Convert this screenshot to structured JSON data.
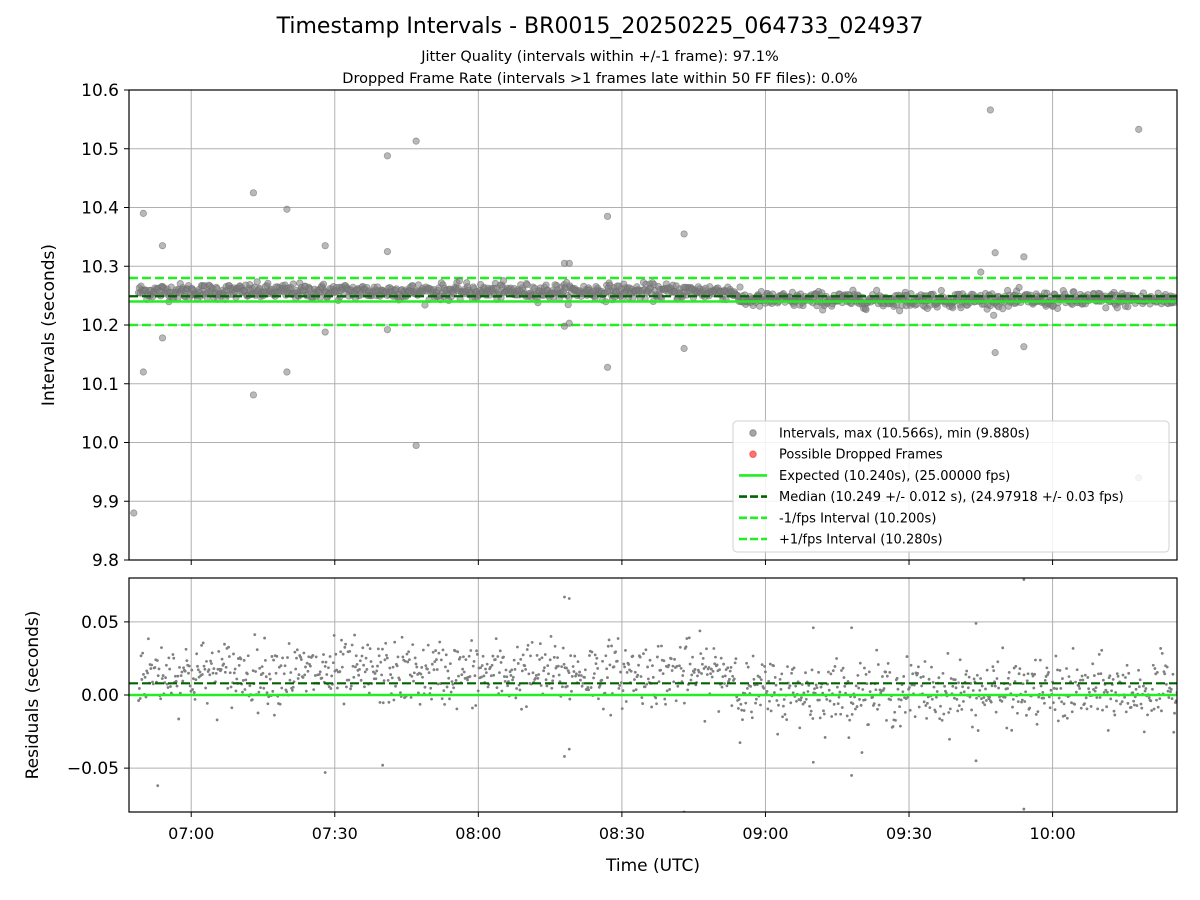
{
  "figure": {
    "title": "Timestamp Intervals - BR0015_20250225_064733_024937",
    "subtitle_1": "Jitter Quality (intervals within +/-1 frame): 97.1%",
    "subtitle_2": "Dropped Frame Rate (intervals >1 frames late within 50 FF files): 0.0%"
  },
  "colors": {
    "points": "#808080",
    "dropped": "#ff3b3b",
    "expected": "#22ee22",
    "median": "#006400",
    "fps_band": "#22ee22",
    "grid": "#b0b0b0"
  },
  "chart_data": [
    {
      "type": "scatter",
      "panel": "top",
      "title": "",
      "xlabel": "",
      "ylabel": "Intervals (seconds)",
      "xlim": [
        "06:47",
        "10:26"
      ],
      "ylim": [
        9.8,
        10.6
      ],
      "y_ticks": [
        "9.8",
        "9.9",
        "10.0",
        "10.1",
        "10.2",
        "10.3",
        "10.4",
        "10.5",
        "10.6"
      ],
      "x_ticks": [
        "07:00",
        "07:30",
        "08:00",
        "08:30",
        "09:00",
        "09:30",
        "10:00"
      ],
      "grid": true,
      "legend_position": "lower-right",
      "legend": [
        {
          "label": "Intervals, max (10.566s), min (9.880s)",
          "kind": "dot",
          "color_key": "points"
        },
        {
          "label": "Possible Dropped Frames",
          "kind": "dot",
          "color_key": "dropped"
        },
        {
          "label": "Expected (10.240s), (25.00000 fps)",
          "kind": "solid",
          "color_key": "expected"
        },
        {
          "label": "Median (10.249 +/- 0.012 s), (24.97918 +/- 0.03 fps)",
          "kind": "dashed",
          "color_key": "median"
        },
        {
          "label": "-1/fps Interval (10.200s)",
          "kind": "dashed",
          "color_key": "fps_band"
        },
        {
          "label": "+1/fps Interval (10.280s)",
          "kind": "dashed",
          "color_key": "fps_band"
        }
      ],
      "reference_lines": {
        "expected": 10.24,
        "median": 10.249,
        "lower": 10.2,
        "upper": 10.28
      },
      "series": [
        {
          "name": "Intervals, max (10.566s), min (9.880s)",
          "cluster": {
            "start": "06:49",
            "end": "10:26",
            "break_at": "08:54",
            "level_before": 10.257,
            "level_after": 10.243,
            "spread": 0.011,
            "count": 1270
          },
          "outliers": [
            {
              "x": "06:48",
              "y": 9.88
            },
            {
              "x": "06:50",
              "y": 10.39
            },
            {
              "x": "06:50",
              "y": 10.12
            },
            {
              "x": "06:54",
              "y": 10.335
            },
            {
              "x": "06:54",
              "y": 10.178
            },
            {
              "x": "07:13",
              "y": 10.425
            },
            {
              "x": "07:13",
              "y": 10.081
            },
            {
              "x": "07:20",
              "y": 10.397
            },
            {
              "x": "07:20",
              "y": 10.12
            },
            {
              "x": "07:28",
              "y": 10.335
            },
            {
              "x": "07:28",
              "y": 10.188
            },
            {
              "x": "07:41",
              "y": 10.325
            },
            {
              "x": "07:41",
              "y": 10.488
            },
            {
              "x": "07:41",
              "y": 10.192
            },
            {
              "x": "07:47",
              "y": 10.513
            },
            {
              "x": "07:47",
              "y": 9.995
            },
            {
              "x": "08:18",
              "y": 10.305
            },
            {
              "x": "08:18",
              "y": 10.198
            },
            {
              "x": "08:19",
              "y": 10.305
            },
            {
              "x": "08:19",
              "y": 10.203
            },
            {
              "x": "08:27",
              "y": 10.385
            },
            {
              "x": "08:27",
              "y": 10.128
            },
            {
              "x": "08:43",
              "y": 10.355
            },
            {
              "x": "08:43",
              "y": 10.16
            },
            {
              "x": "09:45",
              "y": 10.29
            },
            {
              "x": "09:47",
              "y": 10.566
            },
            {
              "x": "09:48",
              "y": 10.323
            },
            {
              "x": "09:48",
              "y": 10.153
            },
            {
              "x": "09:54",
              "y": 10.316
            },
            {
              "x": "09:54",
              "y": 10.163
            },
            {
              "x": "10:18",
              "y": 10.533
            },
            {
              "x": "10:18",
              "y": 9.94
            }
          ]
        }
      ]
    },
    {
      "type": "scatter",
      "panel": "bottom",
      "title": "",
      "xlabel": "Time (UTC)",
      "ylabel": "Residuals (seconds)",
      "xlim": [
        "06:47",
        "10:26"
      ],
      "ylim": [
        -0.08,
        0.08
      ],
      "y_ticks": [
        "−0.05",
        "0.00",
        "0.05"
      ],
      "x_ticks": [
        "07:00",
        "07:30",
        "08:00",
        "08:30",
        "09:00",
        "09:30",
        "10:00"
      ],
      "grid": true,
      "reference_lines": {
        "expected": 0.0,
        "median": 0.008
      },
      "series": [
        {
          "name": "",
          "cluster": {
            "start": "06:49",
            "end": "10:26",
            "break_at": "08:54",
            "level_before": 0.015,
            "level_after": 0.002,
            "spread": 0.011,
            "count": 1270
          },
          "outliers": [
            {
              "x": "06:53",
              "y": -0.062
            },
            {
              "x": "07:28",
              "y": -0.053
            },
            {
              "x": "07:40",
              "y": -0.048
            },
            {
              "x": "08:18",
              "y": 0.067
            },
            {
              "x": "08:19",
              "y": 0.066
            },
            {
              "x": "08:18",
              "y": -0.042
            },
            {
              "x": "08:19",
              "y": -0.037
            },
            {
              "x": "08:43",
              "y": -0.08
            },
            {
              "x": "09:10",
              "y": 0.046
            },
            {
              "x": "09:18",
              "y": 0.046
            },
            {
              "x": "09:10",
              "y": -0.046
            },
            {
              "x": "09:18",
              "y": -0.055
            },
            {
              "x": "09:44",
              "y": 0.049
            },
            {
              "x": "09:44",
              "y": -0.045
            },
            {
              "x": "09:54",
              "y": 0.079
            },
            {
              "x": "09:54",
              "y": -0.078
            }
          ]
        }
      ]
    }
  ]
}
